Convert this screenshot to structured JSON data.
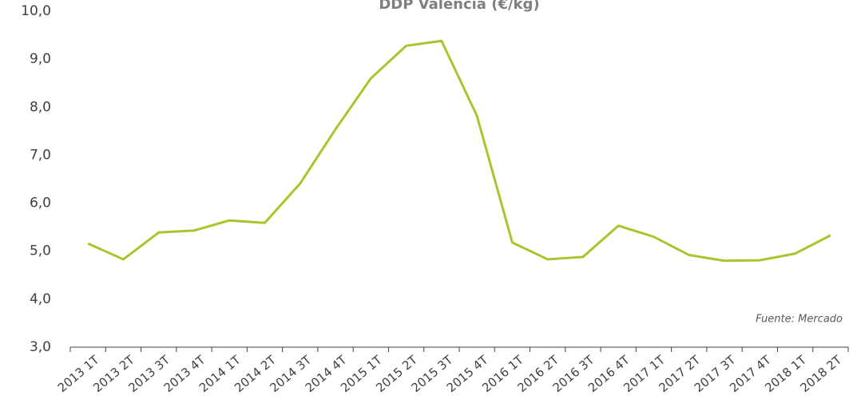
{
  "chart_data": {
    "type": "line",
    "title": "DDP Valencia (€/kg)",
    "annotation": "Fuente: Mercado",
    "categories": [
      "2013 1T",
      "2013 2T",
      "2013 3T",
      "2013 4T",
      "2014 1T",
      "2014 2T",
      "2014 3T",
      "2014 4T",
      "2015 1T",
      "2015 2T",
      "2015 3T",
      "2015 4T",
      "2016 1T",
      "2016 2T",
      "2016 3T",
      "2016 4T",
      "2017 1T",
      "2017 2T",
      "2017 3T",
      "2017 4T",
      "2018 1T",
      "2018 2T"
    ],
    "series": [
      {
        "name": "DDP Valencia",
        "color": "#a9c52c",
        "values": [
          5.16,
          4.83,
          5.39,
          5.43,
          5.64,
          5.59,
          6.41,
          7.54,
          8.6,
          9.28,
          9.38,
          7.82,
          5.18,
          4.83,
          4.88,
          5.53,
          5.3,
          4.92,
          4.8,
          4.81,
          4.95,
          5.33
        ]
      }
    ],
    "ylim": [
      3,
      10
    ],
    "yticks": [
      {
        "value": 3,
        "label": "3,0"
      },
      {
        "value": 4,
        "label": "4,0"
      },
      {
        "value": 5,
        "label": "5,0"
      },
      {
        "value": 6,
        "label": "6,0"
      },
      {
        "value": 7,
        "label": "7,0"
      },
      {
        "value": 8,
        "label": "8,0"
      },
      {
        "value": 9,
        "label": "9,0"
      },
      {
        "value": 10,
        "label": "10,0"
      }
    ],
    "grid": false
  }
}
